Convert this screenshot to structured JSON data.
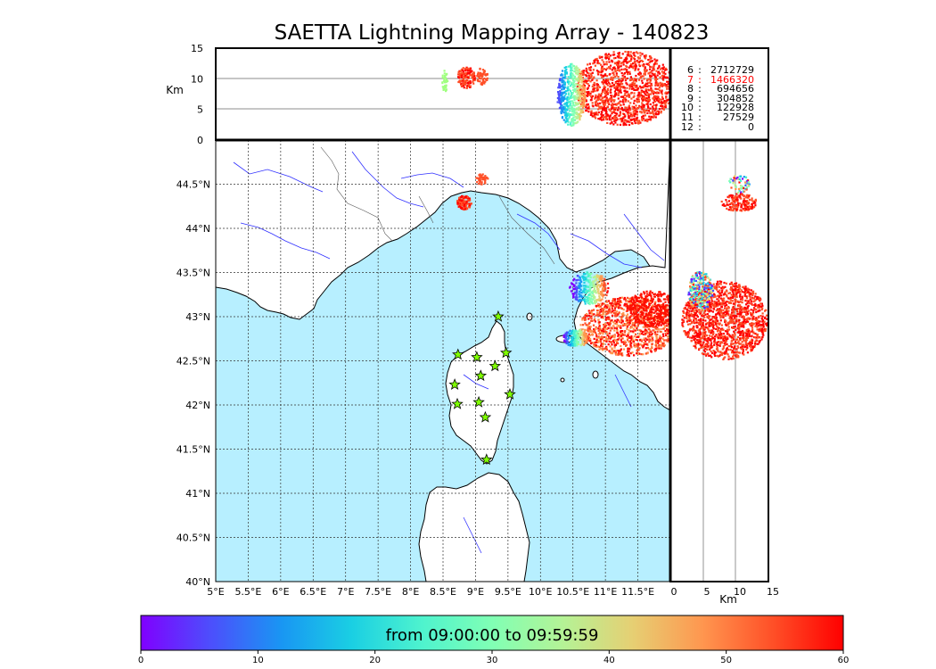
{
  "title": "SAETTA Lightning Mapping Array - 140823",
  "alt_panel": {
    "unit_label": "Km",
    "y_ticks": [
      "15",
      "10",
      "5",
      "0"
    ]
  },
  "side_panel": {
    "unit_label": "Km",
    "x_ticks": [
      "0",
      "5",
      "10",
      "15"
    ]
  },
  "map": {
    "lon_ticks": [
      "5°E",
      "5.5°E",
      "6°E",
      "6.5°E",
      "7°E",
      "7.5°E",
      "8°E",
      "8.5°E",
      "9°E",
      "9.5°E",
      "10°E",
      "10.5°E",
      "11°E",
      "11.5°E"
    ],
    "lat_ticks": [
      "44.5°N",
      "44°N",
      "43.5°N",
      "43°N",
      "42.5°N",
      "42°N",
      "41.5°N",
      "41°N",
      "40.5°N",
      "40°N"
    ],
    "lon_range": [
      5,
      12
    ],
    "lat_range": [
      40,
      45
    ],
    "sea_color": "#b7efff",
    "land_color": "#ffffff",
    "grid": "dotted",
    "stations_marker": "star-icon",
    "station_color": "#7fff00",
    "stations": [
      {
        "lon": 9.35,
        "lat": 43.0
      },
      {
        "lon": 8.73,
        "lat": 42.57
      },
      {
        "lon": 9.02,
        "lat": 42.54
      },
      {
        "lon": 9.47,
        "lat": 42.59
      },
      {
        "lon": 9.3,
        "lat": 42.44
      },
      {
        "lon": 9.08,
        "lat": 42.33
      },
      {
        "lon": 8.68,
        "lat": 42.23
      },
      {
        "lon": 9.53,
        "lat": 42.12
      },
      {
        "lon": 8.72,
        "lat": 42.01
      },
      {
        "lon": 9.05,
        "lat": 42.03
      },
      {
        "lon": 9.15,
        "lat": 41.86
      },
      {
        "lon": 9.17,
        "lat": 41.38
      }
    ]
  },
  "stats": [
    {
      "n": "6",
      "value": "2712729",
      "highlight": false
    },
    {
      "n": "7",
      "value": "1466320",
      "highlight": true
    },
    {
      "n": "8",
      "value": "694656",
      "highlight": false
    },
    {
      "n": "9",
      "value": "304852",
      "highlight": false
    },
    {
      "n": "10",
      "value": "122928",
      "highlight": false
    },
    {
      "n": "11",
      "value": "27529",
      "highlight": false
    },
    {
      "n": "12",
      "value": "0",
      "highlight": false
    }
  ],
  "stats_sep": ":",
  "stats_highlight_color": "#ff0000",
  "colorbar": {
    "label": "from 09:00:00 to 09:59:59",
    "ticks": [
      "0",
      "10",
      "20",
      "30",
      "40",
      "50",
      "60"
    ],
    "range": [
      0,
      60
    ],
    "colormap": "rainbow"
  }
}
